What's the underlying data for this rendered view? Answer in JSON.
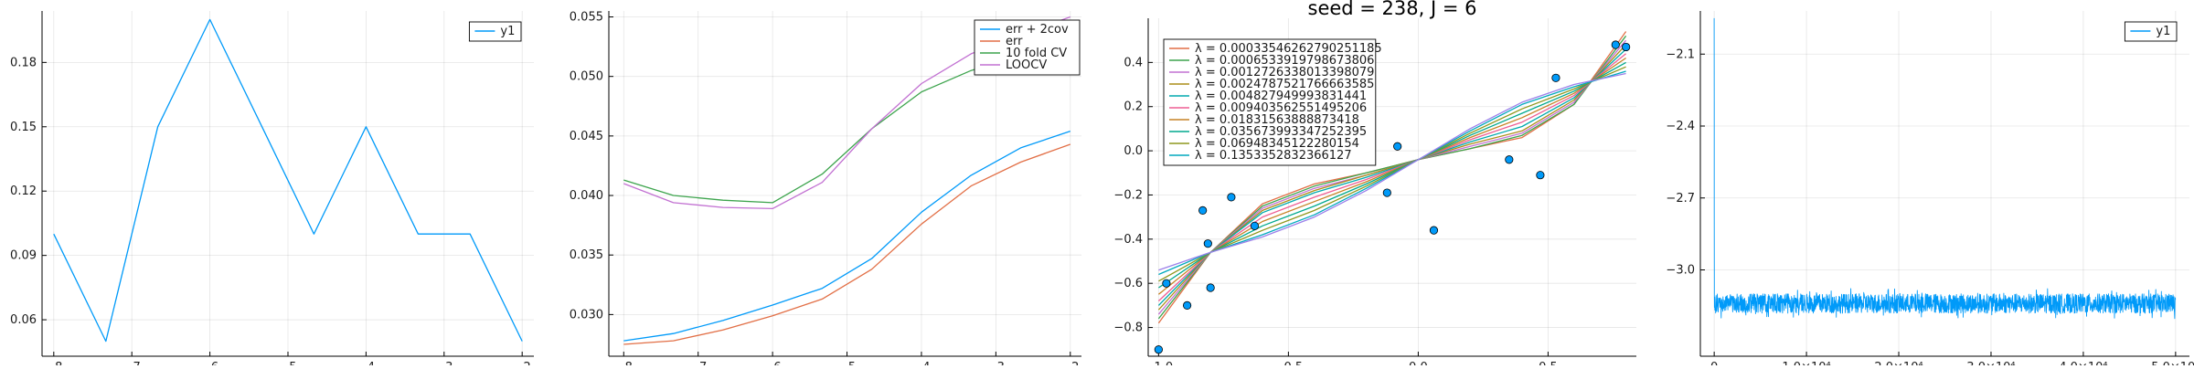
{
  "chart_data": [
    {
      "type": "line",
      "title": "",
      "xlabel": "",
      "ylabel": "",
      "xlim": [
        -8.15,
        -1.85
      ],
      "ylim": [
        0.043,
        0.204
      ],
      "x_ticks": [
        -8,
        -7,
        -6,
        -5,
        -4,
        -3,
        -2
      ],
      "x_tick_labels": [
        "−8",
        "−7",
        "−6",
        "−5",
        "−4",
        "−3",
        "−2"
      ],
      "y_ticks": [
        0.06,
        0.09,
        0.12,
        0.15,
        0.18
      ],
      "y_tick_labels": [
        "0.06",
        "0.09",
        "0.12",
        "0.15",
        "0.18"
      ],
      "grid": true,
      "legend": "top-right",
      "colors": [
        "#009af9"
      ],
      "series": [
        {
          "name": "y1",
          "x": [
            -8,
            -7.333,
            -6.667,
            -6,
            -5.333,
            -4.667,
            -4,
            -3.333,
            -2.667,
            -2
          ],
          "y": [
            0.1,
            0.05,
            0.15,
            0.2,
            0.15,
            0.1,
            0.15,
            0.1,
            0.1,
            0.05
          ]
        }
      ]
    },
    {
      "type": "line",
      "title": "",
      "xlabel": "",
      "ylabel": "",
      "xlim": [
        -8.2,
        -1.85
      ],
      "ylim": [
        0.0265,
        0.0555
      ],
      "x_ticks": [
        -8,
        -7,
        -6,
        -5,
        -4,
        -3,
        -2
      ],
      "x_tick_labels": [
        "−8",
        "−7",
        "−6",
        "−5",
        "−4",
        "−3",
        "−2"
      ],
      "y_ticks": [
        0.03,
        0.035,
        0.04,
        0.045,
        0.05,
        0.055
      ],
      "y_tick_labels": [
        "0.030",
        "0.035",
        "0.040",
        "0.045",
        "0.050",
        "0.055"
      ],
      "grid": true,
      "legend": "top-right",
      "colors": [
        "#009af9",
        "#e26f46",
        "#3da44d",
        "#c271d2"
      ],
      "series": [
        {
          "name": "err + 2cov",
          "x": [
            -8,
            -7.333,
            -6.667,
            -6,
            -5.333,
            -4.667,
            -4,
            -3.333,
            -2.667,
            -2
          ],
          "y": [
            0.0278,
            0.0284,
            0.0295,
            0.0308,
            0.0322,
            0.0347,
            0.0386,
            0.0417,
            0.044,
            0.0454
          ]
        },
        {
          "name": "err",
          "x": [
            -8,
            -7.333,
            -6.667,
            -6,
            -5.333,
            -4.667,
            -4,
            -3.333,
            -2.667,
            -2
          ],
          "y": [
            0.0275,
            0.0278,
            0.0287,
            0.0299,
            0.0313,
            0.0338,
            0.0376,
            0.0408,
            0.0428,
            0.0443
          ]
        },
        {
          "name": "10 fold CV",
          "x": [
            -8,
            -7.333,
            -6.667,
            -6,
            -5.333,
            -4.667,
            -4,
            -3.333,
            -2.667,
            -2
          ],
          "y": [
            0.0413,
            0.04,
            0.0396,
            0.0394,
            0.0418,
            0.0456,
            0.0487,
            0.0505,
            0.0518,
            0.053
          ]
        },
        {
          "name": "LOOCV",
          "x": [
            -8,
            -7.333,
            -6.667,
            -6,
            -5.333,
            -4.667,
            -4,
            -3.333,
            -2.667,
            -2
          ],
          "y": [
            0.041,
            0.0394,
            0.039,
            0.0389,
            0.0411,
            0.0456,
            0.0494,
            0.0519,
            0.0535,
            0.055
          ]
        }
      ]
    },
    {
      "type": "scatter",
      "title": "seed = 238, J = 6",
      "xlabel": "",
      "ylabel": "",
      "xlim": [
        -1.04,
        0.84
      ],
      "ylim": [
        -0.93,
        0.6
      ],
      "x_ticks": [
        -1,
        -0.5,
        0,
        0.5
      ],
      "x_tick_labels": [
        "−1.0",
        "−0.5",
        "0.0",
        "0.5"
      ],
      "y_ticks": [
        -0.8,
        -0.6,
        -0.4,
        -0.2,
        0,
        0.2,
        0.4
      ],
      "y_tick_labels": [
        "−0.8",
        "−0.6",
        "−0.4",
        "−0.2",
        "0.0",
        "0.2",
        "0.4"
      ],
      "grid": true,
      "legend": "top-left",
      "colors": [
        "#e26f46",
        "#3da44d",
        "#c271d2",
        "#ac8d18",
        "#00a9ad",
        "#ed5e93",
        "#c68225",
        "#00a98d",
        "#8e971d",
        "#00a9be",
        "#9b7fe9"
      ],
      "points": {
        "x": [
          -1,
          -0.97,
          -0.89,
          -0.83,
          -0.81,
          -0.8,
          -0.72,
          -0.63,
          -0.12,
          -0.08,
          0.06,
          0.35,
          0.47,
          0.53,
          0.76,
          0.8
        ],
        "y": [
          -0.9,
          -0.6,
          -0.7,
          -0.27,
          -0.42,
          -0.62,
          -0.21,
          -0.34,
          -0.19,
          0.02,
          -0.36,
          -0.04,
          -0.11,
          0.33,
          0.48,
          0.47
        ],
        "color": "#009af9"
      },
      "series": [
        {
          "name": "λ = 0.00033546262790251185",
          "x": [
            -1,
            -0.8,
            -0.6,
            -0.4,
            -0.2,
            0,
            0.2,
            0.4,
            0.6,
            0.8
          ],
          "y": [
            -0.78,
            -0.46,
            -0.24,
            -0.15,
            -0.1,
            -0.04,
            0.01,
            0.06,
            0.21,
            0.54
          ]
        },
        {
          "name": "λ = 0.0006533919798673806",
          "x": [
            -1,
            -0.8,
            -0.6,
            -0.4,
            -0.2,
            0,
            0.2,
            0.4,
            0.6,
            0.8
          ],
          "y": [
            -0.76,
            -0.46,
            -0.25,
            -0.16,
            -0.1,
            -0.04,
            0.01,
            0.07,
            0.21,
            0.52
          ]
        },
        {
          "name": "λ = 0.0012726338013398079",
          "x": [
            -1,
            -0.8,
            -0.6,
            -0.4,
            -0.2,
            0,
            0.2,
            0.4,
            0.6,
            0.8
          ],
          "y": [
            -0.74,
            -0.46,
            -0.26,
            -0.17,
            -0.11,
            -0.04,
            0.02,
            0.08,
            0.22,
            0.5
          ]
        },
        {
          "name": "λ = 0.0024787521766663585",
          "x": [
            -1,
            -0.8,
            -0.6,
            -0.4,
            -0.2,
            0,
            0.2,
            0.4,
            0.6,
            0.8
          ],
          "y": [
            -0.72,
            -0.46,
            -0.27,
            -0.18,
            -0.11,
            -0.04,
            0.03,
            0.09,
            0.23,
            0.48
          ]
        },
        {
          "name": "λ = 0.004827949993831441",
          "x": [
            -1,
            -0.8,
            -0.6,
            -0.4,
            -0.2,
            0,
            0.2,
            0.4,
            0.6,
            0.8
          ],
          "y": [
            -0.7,
            -0.46,
            -0.28,
            -0.19,
            -0.12,
            -0.04,
            0.04,
            0.11,
            0.24,
            0.46
          ]
        },
        {
          "name": "λ = 0.009403562551495206",
          "x": [
            -1,
            -0.8,
            -0.6,
            -0.4,
            -0.2,
            0,
            0.2,
            0.4,
            0.6,
            0.8
          ],
          "y": [
            -0.68,
            -0.46,
            -0.3,
            -0.21,
            -0.13,
            -0.04,
            0.05,
            0.13,
            0.25,
            0.44
          ]
        },
        {
          "name": "λ = 0.01831563888873418",
          "x": [
            -1,
            -0.8,
            -0.6,
            -0.4,
            -0.2,
            0,
            0.2,
            0.4,
            0.6,
            0.8
          ],
          "y": [
            -0.65,
            -0.46,
            -0.32,
            -0.23,
            -0.14,
            -0.04,
            0.06,
            0.15,
            0.26,
            0.42
          ]
        },
        {
          "name": "λ = 0.035673993347252395",
          "x": [
            -1,
            -0.8,
            -0.6,
            -0.4,
            -0.2,
            0,
            0.2,
            0.4,
            0.6,
            0.8
          ],
          "y": [
            -0.62,
            -0.46,
            -0.34,
            -0.25,
            -0.15,
            -0.04,
            0.07,
            0.17,
            0.27,
            0.4
          ]
        },
        {
          "name": "λ = 0.06948345122280154",
          "x": [
            -1,
            -0.8,
            -0.6,
            -0.4,
            -0.2,
            0,
            0.2,
            0.4,
            0.6,
            0.8
          ],
          "y": [
            -0.59,
            -0.46,
            -0.36,
            -0.27,
            -0.16,
            -0.04,
            0.08,
            0.19,
            0.28,
            0.38
          ]
        },
        {
          "name": "λ = 0.1353352832366127",
          "x": [
            -1,
            -0.8,
            -0.6,
            -0.4,
            -0.2,
            0,
            0.2,
            0.4,
            0.6,
            0.8
          ],
          "y": [
            -0.56,
            -0.46,
            -0.38,
            -0.29,
            -0.17,
            -0.04,
            0.09,
            0.21,
            0.29,
            0.36
          ]
        },
        {
          "name": "",
          "x": [
            -1,
            -0.8,
            -0.6,
            -0.4,
            -0.2,
            0,
            0.2,
            0.4,
            0.6,
            0.8
          ],
          "y": [
            -0.54,
            -0.46,
            -0.39,
            -0.3,
            -0.18,
            -0.04,
            0.1,
            0.22,
            0.3,
            0.35
          ]
        }
      ]
    },
    {
      "type": "line",
      "title": "",
      "xlabel": "",
      "ylabel": "",
      "xlim": [
        -1500,
        51500
      ],
      "ylim": [
        -3.36,
        -1.92
      ],
      "x_ticks": [
        0,
        10000,
        20000,
        30000,
        40000,
        50000
      ],
      "x_tick_labels": [
        "0",
        "1.0×10⁴",
        "2.0×10⁴",
        "3.0×10⁴",
        "4.0×10⁴",
        "5.0×10⁴"
      ],
      "y_ticks": [
        -3.0,
        -2.7,
        -2.4,
        -2.1
      ],
      "y_tick_labels": [
        "−3.0",
        "−2.7",
        "−2.4",
        "−2.1"
      ],
      "grid": true,
      "legend": "top-right",
      "colors": [
        "#009af9"
      ],
      "series": [
        {
          "name": "y1",
          "points_count": 50000,
          "initial_values": [
            -1.95,
            -2.3,
            -2.75,
            -3.05,
            -3.1
          ],
          "noise_band": [
            -3.19,
            -3.1
          ],
          "noise_center": -3.14
        }
      ]
    }
  ]
}
